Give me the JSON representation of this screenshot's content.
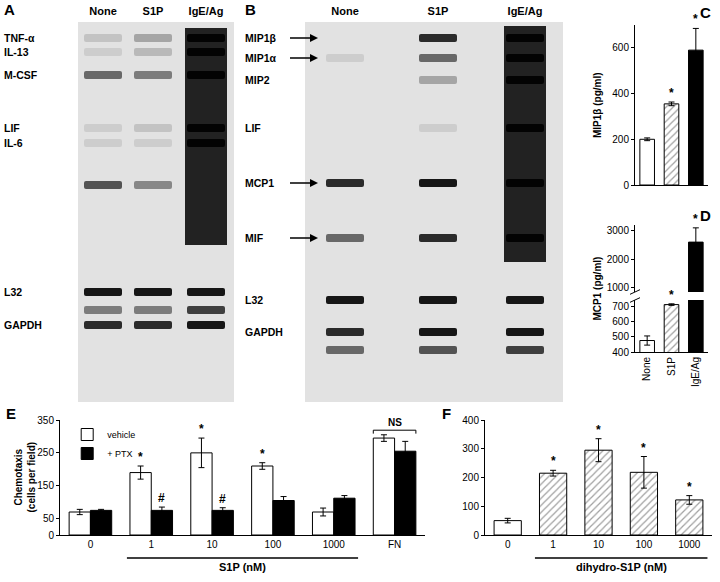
{
  "gels": [
    {
      "panel": "A",
      "type": "gel",
      "lanes": [
        "None",
        "S1P",
        "IgE/Ag"
      ],
      "bands": [
        "TNF-α",
        "IL-13",
        "M-CSF",
        "LIF",
        "IL-6",
        "L32",
        "GAPDH"
      ]
    },
    {
      "panel": "B",
      "type": "gel",
      "lanes": [
        "None",
        "S1P",
        "IgE/Ag"
      ],
      "bands": [
        "MIP1β",
        "MIP1α",
        "MIP2",
        "LIF",
        "MCP1",
        "MIF",
        "L32",
        "GAPDH"
      ]
    }
  ],
  "chart_data": [
    {
      "panel": "C",
      "type": "bar",
      "categories": [
        "None",
        "S1P",
        "IgE/Ag"
      ],
      "values": [
        200,
        355,
        590
      ],
      "errors": [
        6,
        8,
        95
      ],
      "colors": [
        "#ffffff",
        "#ffffff",
        "#000000"
      ],
      "marker": [
        "none",
        "hatch",
        "none"
      ],
      "ylabel": "MIP1β (pg/ml)",
      "ylim": [
        0,
        700
      ],
      "yticks": [
        0,
        200,
        400,
        600
      ],
      "tick_labels": "y",
      "annotations": [
        {
          "category": "S1P",
          "text": "*"
        },
        {
          "category": "IgE/Ag",
          "text": "*"
        }
      ]
    },
    {
      "panel": "D",
      "type": "bar",
      "categories": [
        "None",
        "S1P",
        "IgE/Ag"
      ],
      "values": [
        475,
        710,
        2600
      ],
      "errors": [
        30,
        5,
        500
      ],
      "colors": [
        "#ffffff",
        "#ffffff",
        "#000000"
      ],
      "marker": [
        "none",
        "hatch",
        "none"
      ],
      "ylabel": "MCP1 (pg/ml)",
      "ylim": [
        [
          400,
          740
        ],
        [
          850,
          3200
        ]
      ],
      "yticks": [
        400,
        500,
        600,
        700,
        1000,
        2000,
        3000
      ],
      "annotations": [
        {
          "category": "S1P",
          "text": "*"
        },
        {
          "category": "IgE/Ag",
          "text": "*"
        }
      ]
    },
    {
      "panel": "E",
      "type": "bar",
      "categories": [
        "0",
        "1",
        "10",
        "100",
        "1000",
        "FN"
      ],
      "series": [
        {
          "name": "vehicle",
          "color": "#ffffff",
          "values": [
            70,
            190,
            250,
            210,
            70,
            295
          ],
          "errors": [
            8,
            20,
            45,
            10,
            12,
            10
          ]
        },
        {
          "name": "+ PTX",
          "color": "#000000",
          "values": [
            75,
            75,
            75,
            105,
            112,
            255
          ],
          "errors": [
            3,
            10,
            8,
            12,
            8,
            30
          ]
        }
      ],
      "ylabel": [
        "Chemotaxis",
        "(cells per field)"
      ],
      "ylim": [
        0,
        350
      ],
      "yticks": [
        0,
        50,
        150,
        250,
        350
      ],
      "legend": "top left",
      "x_group": {
        "label": "S1P (nM)",
        "from": "1",
        "to": "1000"
      },
      "annotations": [
        {
          "category": "1",
          "series": "vehicle",
          "text": "*"
        },
        {
          "category": "10",
          "series": "vehicle",
          "text": "*"
        },
        {
          "category": "100",
          "series": "vehicle",
          "text": "*"
        },
        {
          "category": "1",
          "series": "+ PTX",
          "text": "#"
        },
        {
          "category": "10",
          "series": "+ PTX",
          "text": "#"
        },
        {
          "category": "FN",
          "text": "NS"
        }
      ]
    },
    {
      "panel": "F",
      "type": "bar",
      "categories": [
        "0",
        "1",
        "10",
        "100",
        "1000"
      ],
      "values": [
        50,
        215,
        295,
        218,
        122
      ],
      "errors": [
        8,
        10,
        40,
        55,
        15
      ],
      "colors": [
        "#ffffff",
        "#ffffff",
        "#ffffff",
        "#ffffff",
        "#ffffff"
      ],
      "marker": [
        "none",
        "hatch",
        "hatch",
        "hatch",
        "hatch"
      ],
      "ylim": [
        0,
        400
      ],
      "yticks": [
        0,
        100,
        200,
        300,
        400
      ],
      "x_group": {
        "label": "dihydro-S1P (nM)",
        "from": "1",
        "to": "1000"
      },
      "annotations": [
        {
          "category": "1",
          "text": "*"
        },
        {
          "category": "10",
          "text": "*"
        },
        {
          "category": "100",
          "text": "*"
        },
        {
          "category": "1000",
          "text": "*"
        }
      ]
    }
  ]
}
